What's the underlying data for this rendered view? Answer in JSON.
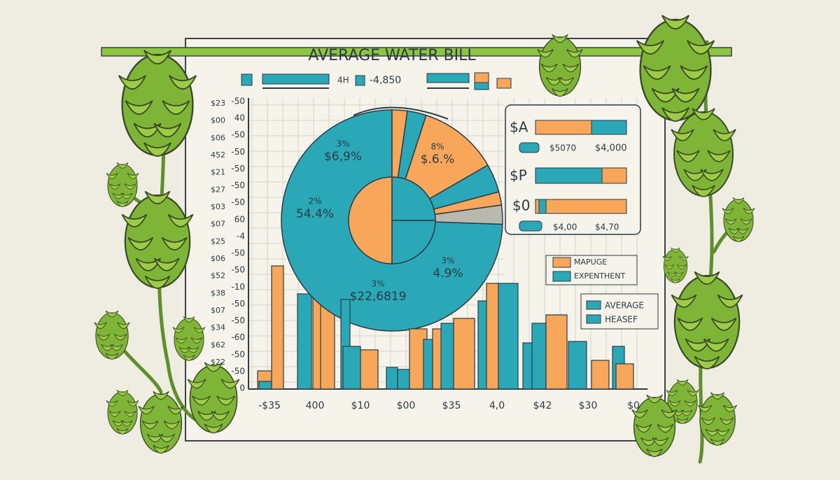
{
  "header": {
    "title": "AVERAGE WATER BILL",
    "top_left": "4H",
    "top_right": "-4,850"
  },
  "axis": {
    "outer_labels": [
      "$23",
      "$00",
      "$06",
      "452",
      "$21",
      "$27",
      "$03",
      "$07",
      "$25",
      "$06",
      "$52",
      "$38",
      "$07",
      "$34",
      "$62",
      "$22"
    ],
    "inner_labels": [
      "-50",
      "40",
      "-50",
      "-50",
      "-50",
      "-50",
      "-50",
      "60",
      "-4",
      "-50",
      "-50",
      "-10",
      "-50",
      "-50",
      "-60",
      "-50",
      "-50",
      "0"
    ],
    "x_labels": [
      "-$35",
      "400",
      "$10",
      "$00",
      "$35",
      "4,0",
      "$42",
      "$30",
      "$0"
    ]
  },
  "pie_labels": [
    {
      "top": "3%",
      "bottom": "$6,9%"
    },
    {
      "top": "8%",
      "bottom": "$.6.%"
    },
    {
      "top": "2%",
      "bottom": "54.4%"
    },
    {
      "top": "3%",
      "bottom": "4.9%"
    },
    {
      "top": "3%",
      "bottom": "$22,6819"
    }
  ],
  "side_panel": {
    "row1": "$A",
    "row1_left": "$5070",
    "row1_right": "$4,000",
    "row2": "$P",
    "row3": "$0",
    "row3_left": "$4,00",
    "row3_right": "$4,70"
  },
  "legend": {
    "box1": [
      "MAPUGE",
      "EXPENTHENT"
    ],
    "box2": [
      "AVERAGE",
      "HEASEF"
    ]
  }
}
